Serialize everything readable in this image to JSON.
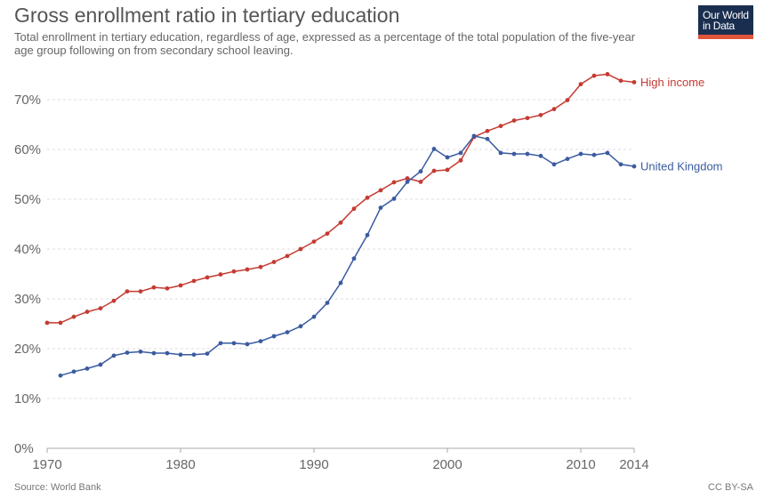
{
  "header": {
    "title": "Gross enrollment ratio in tertiary education",
    "subtitle": "Total enrollment in tertiary education, regardless of age, expressed as a percentage of the total population of the five-year age group following on from secondary school leaving."
  },
  "logo": {
    "line1": "Our World",
    "line2": "in Data",
    "color": "#1a2e4f",
    "accent": "#e0553a"
  },
  "footer": {
    "source": "Source: World Bank",
    "license": "CC BY-SA"
  },
  "chart_data": {
    "type": "line",
    "title": "Gross enrollment ratio in tertiary education",
    "xlabel": "",
    "ylabel": "",
    "xlim": [
      1970,
      2014
    ],
    "ylim": [
      0,
      70
    ],
    "x_ticks": [
      "1970",
      "1980",
      "1990",
      "2000",
      "2010",
      "2014"
    ],
    "x_tick_values": [
      1970,
      1980,
      1990,
      2000,
      2010,
      2014
    ],
    "y_ticks": [
      "0%",
      "10%",
      "20%",
      "30%",
      "40%",
      "50%",
      "60%",
      "70%"
    ],
    "y_tick_values": [
      0,
      10,
      20,
      30,
      40,
      50,
      60,
      70
    ],
    "grid": "horizontal-dashed",
    "series": [
      {
        "name": "High income",
        "color": "#c53a32",
        "x": [
          1970,
          1971,
          1972,
          1973,
          1974,
          1975,
          1976,
          1977,
          1978,
          1979,
          1980,
          1981,
          1982,
          1983,
          1984,
          1985,
          1986,
          1987,
          1988,
          1989,
          1990,
          1991,
          1992,
          1993,
          1994,
          1995,
          1996,
          1997,
          1998,
          1999,
          2000,
          2001,
          2002,
          2003,
          2004,
          2005,
          2006,
          2007,
          2008,
          2009,
          2010,
          2011,
          2012,
          2013,
          2014
        ],
        "values": [
          25.2,
          25.2,
          26.4,
          27.4,
          28.1,
          29.6,
          31.5,
          31.5,
          32.3,
          32.1,
          32.7,
          33.6,
          34.3,
          34.9,
          35.5,
          35.9,
          36.4,
          37.4,
          38.6,
          40.0,
          41.5,
          43.1,
          45.3,
          48.1,
          50.3,
          51.8,
          53.4,
          54.2,
          53.5,
          55.7,
          55.9,
          57.8,
          62.5,
          63.7,
          64.7,
          65.8,
          66.3,
          66.9,
          68.1,
          69.9,
          73.1,
          74.8,
          75.1,
          73.8,
          73.5
        ]
      },
      {
        "name": "United Kingdom",
        "color": "#3a5ba0",
        "x": [
          1971,
          1972,
          1973,
          1974,
          1975,
          1976,
          1977,
          1978,
          1979,
          1980,
          1981,
          1982,
          1983,
          1984,
          1985,
          1986,
          1987,
          1988,
          1989,
          1990,
          1991,
          1992,
          1993,
          1994,
          1995,
          1996,
          1997,
          1998,
          1999,
          2000,
          2001,
          2002,
          2003,
          2004,
          2005,
          2006,
          2007,
          2008,
          2009,
          2010,
          2011,
          2012,
          2013,
          2014
        ],
        "values": [
          14.6,
          15.4,
          16.0,
          16.8,
          18.6,
          19.2,
          19.4,
          19.1,
          19.1,
          18.8,
          18.8,
          19.0,
          21.1,
          21.1,
          20.9,
          21.5,
          22.5,
          23.3,
          24.5,
          26.4,
          29.2,
          33.2,
          38.1,
          42.8,
          48.3,
          50.1,
          53.5,
          55.6,
          60.1,
          58.4,
          59.3,
          62.7,
          62.1,
          59.3,
          59.1,
          59.1,
          58.7,
          57.0,
          58.1,
          59.1,
          58.9,
          59.3,
          57.0,
          56.6
        ]
      }
    ]
  }
}
